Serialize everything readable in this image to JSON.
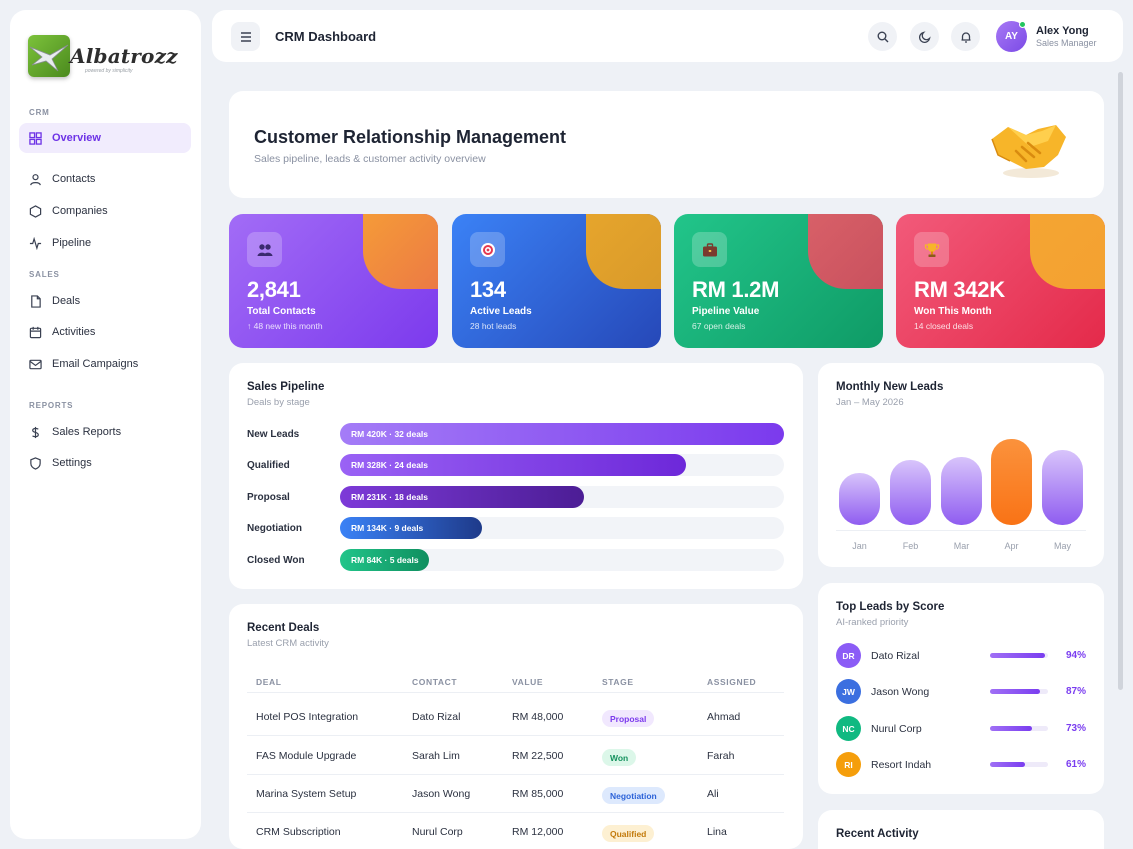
{
  "brand": {
    "name": "Albatrozz",
    "tagline": "powered by simplicity"
  },
  "sidebar": {
    "sections": [
      {
        "title": "CRM",
        "items": [
          "Overview",
          "Contacts",
          "Companies",
          "Pipeline"
        ]
      },
      {
        "title": "SALES",
        "items": [
          "Deals",
          "Activities",
          "Email Campaigns"
        ]
      },
      {
        "title": "REPORTS",
        "items": [
          "Sales Reports",
          "Settings"
        ]
      }
    ],
    "active": "Overview",
    "icons": [
      "grid-icon",
      "user-icon",
      "hexagon-icon",
      "activity-icon",
      "file-icon",
      "calendar-icon",
      "mail-icon",
      "dollar-icon",
      "shield-icon"
    ]
  },
  "header": {
    "title": "CRM Dashboard",
    "user": {
      "initials": "AY",
      "name": "Alex Yong",
      "role": "Sales Manager"
    }
  },
  "hero": {
    "title": "Customer Relationship Management",
    "subtitle": "Sales pipeline, leads & customer activity overview"
  },
  "stats": [
    {
      "value": "2,841",
      "label": "Total Contacts",
      "note": "↑ 48 new this month",
      "icon": "users-icon"
    },
    {
      "value": "134",
      "label": "Active Leads",
      "note": "28 hot leads",
      "icon": "target-icon"
    },
    {
      "value": "RM 1.2M",
      "label": "Pipeline Value",
      "note": "67 open deals",
      "icon": "briefcase-icon"
    },
    {
      "value": "RM 342K",
      "label": "Won This Month",
      "note": "14 closed deals",
      "icon": "trophy-icon"
    }
  ],
  "pipeline": {
    "title": "Sales Pipeline",
    "subtitle": "Deals by stage",
    "stages": [
      {
        "label": "New Leads",
        "bar_text": "RM 420K · 32 deals",
        "fraction": 1.0
      },
      {
        "label": "Qualified",
        "bar_text": "RM 328K · 24 deals",
        "fraction": 0.78
      },
      {
        "label": "Proposal",
        "bar_text": "RM 231K · 18 deals",
        "fraction": 0.55
      },
      {
        "label": "Negotiation",
        "bar_text": "RM 134K · 9 deals",
        "fraction": 0.32
      },
      {
        "label": "Closed Won",
        "bar_text": "RM 84K · 5 deals",
        "fraction": 0.2
      }
    ]
  },
  "monthly": {
    "title": "Monthly New Leads",
    "subtitle": "Jan – May 2026",
    "chart_data": {
      "type": "bar",
      "categories": [
        "Jan",
        "Feb",
        "Mar",
        "Apr",
        "May"
      ],
      "values": [
        0.6,
        0.75,
        0.79,
        1.0,
        0.87
      ],
      "highlight": "Apr",
      "colors": {
        "normal": "#8f5cf0",
        "highlight": "#f97316"
      }
    }
  },
  "deals": {
    "title": "Recent Deals",
    "subtitle": "Latest CRM activity",
    "columns": [
      "DEAL",
      "CONTACT",
      "VALUE",
      "STAGE",
      "ASSIGNED"
    ],
    "rows": [
      {
        "deal": "Hotel POS Integration",
        "contact": "Dato Rizal",
        "value": "RM 48,000",
        "stage": "Proposal",
        "assigned": "Ahmad"
      },
      {
        "deal": "FAS Module Upgrade",
        "contact": "Sarah Lim",
        "value": "RM 22,500",
        "stage": "Won",
        "assigned": "Farah"
      },
      {
        "deal": "Marina System Setup",
        "contact": "Jason Wong",
        "value": "RM 85,000",
        "stage": "Negotiation",
        "assigned": "Ali"
      },
      {
        "deal": "CRM Subscription",
        "contact": "Nurul Corp",
        "value": "RM 12,000",
        "stage": "Qualified",
        "assigned": "Lina"
      }
    ]
  },
  "top_leads": {
    "title": "Top Leads by Score",
    "subtitle": "AI-ranked priority",
    "leads": [
      {
        "initials": "DR",
        "name": "Dato Rizal",
        "score": 94,
        "score_text": "94%",
        "color": "#8b5cf6"
      },
      {
        "initials": "JW",
        "name": "Jason Wong",
        "score": 87,
        "score_text": "87%",
        "color": "#3b6fe0"
      },
      {
        "initials": "NC",
        "name": "Nurul Corp",
        "score": 73,
        "score_text": "73%",
        "color": "#10b981"
      },
      {
        "initials": "RI",
        "name": "Resort Indah",
        "score": 61,
        "score_text": "61%",
        "color": "#f59e0b"
      }
    ]
  },
  "recent_activity": {
    "title": "Recent Activity"
  }
}
